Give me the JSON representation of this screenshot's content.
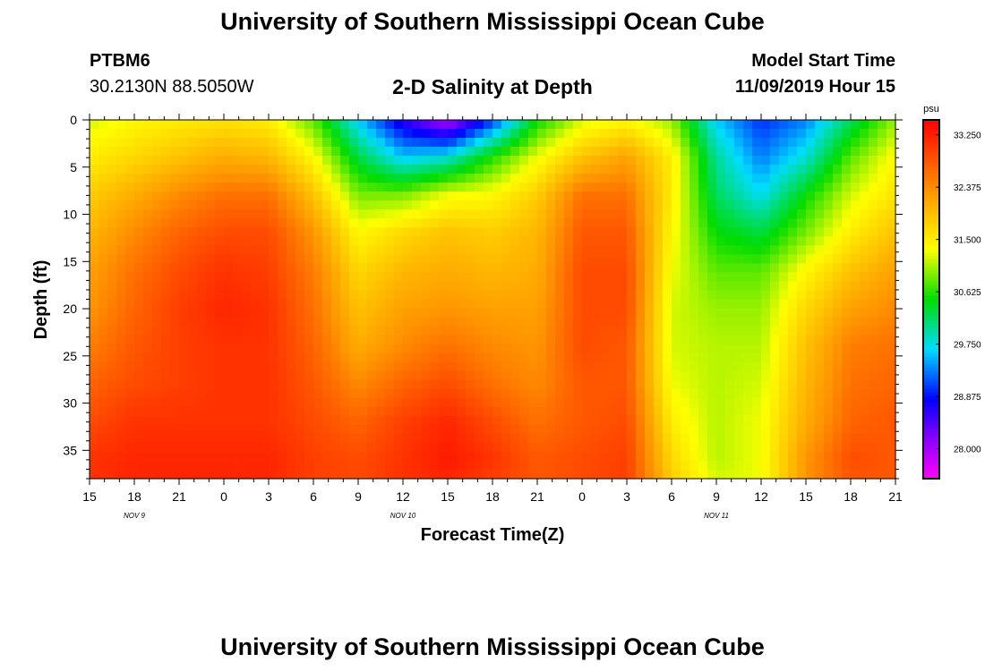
{
  "header": {
    "title": "University of Southern Mississippi Ocean Cube",
    "station": "PTBM6",
    "coordinates": "30.2130N 88.5050W",
    "subtitle": "2-D Salinity at Depth",
    "start_label": "Model Start Time",
    "start_value": "11/09/2019 Hour 15"
  },
  "footer": {
    "title": "University of Southern Mississippi Ocean Cube"
  },
  "chart_data": {
    "type": "heatmap",
    "title": "2-D Salinity at Depth",
    "xlabel": "Forecast Time(Z)",
    "ylabel": "Depth (ft)",
    "x_ticks": [
      "15",
      "18",
      "21",
      "0",
      "3",
      "6",
      "9",
      "12",
      "15",
      "18",
      "21",
      "0",
      "3",
      "6",
      "9",
      "12",
      "15",
      "18",
      "21"
    ],
    "date_labels": [
      {
        "label": "NOV  9",
        "tick_index": 1
      },
      {
        "label": "NOV 10",
        "tick_index": 7
      },
      {
        "label": "NOV 11",
        "tick_index": 14
      }
    ],
    "y_ticks": [
      0,
      5,
      10,
      15,
      20,
      25,
      30,
      35
    ],
    "ylim": [
      0,
      38
    ],
    "x_range_hours": [
      0,
      54
    ],
    "colorbar": {
      "units": "psu",
      "vmin": 27.5,
      "vmax": 33.5,
      "ticks": [
        "33.250",
        "32.375",
        "31.500",
        "30.625",
        "29.750",
        "28.875",
        "28.000"
      ]
    },
    "depth_levels_ft": [
      0,
      4,
      8,
      12,
      16,
      20,
      24,
      28,
      32,
      36,
      38
    ],
    "time_hours": [
      0,
      3,
      6,
      9,
      12,
      15,
      18,
      21,
      24,
      27,
      30,
      33,
      36,
      39,
      42,
      45,
      48,
      51,
      54
    ],
    "salinity_psu": [
      [
        31.2,
        31.4,
        31.5,
        31.6,
        31.5,
        30.8,
        29.6,
        28.6,
        27.9,
        29.0,
        30.5,
        31.2,
        31.4,
        31.0,
        29.6,
        29.0,
        29.3,
        30.2,
        31.0
      ],
      [
        31.5,
        31.7,
        31.9,
        32.1,
        32.0,
        31.4,
        30.3,
        29.6,
        29.8,
        30.6,
        31.3,
        31.9,
        32.2,
        31.5,
        30.0,
        29.3,
        29.8,
        30.8,
        31.4
      ],
      [
        31.8,
        32.1,
        32.4,
        32.6,
        32.6,
        31.9,
        30.9,
        30.9,
        31.3,
        31.4,
        31.8,
        32.6,
        32.6,
        31.5,
        30.2,
        29.7,
        30.5,
        31.2,
        31.6
      ],
      [
        32.0,
        32.4,
        32.7,
        32.9,
        32.9,
        32.3,
        31.4,
        31.7,
        31.9,
        31.8,
        32.0,
        32.8,
        32.8,
        31.4,
        30.5,
        30.3,
        30.9,
        31.5,
        31.9
      ],
      [
        32.2,
        32.6,
        32.9,
        33.1,
        33.0,
        32.5,
        31.7,
        32.0,
        32.1,
        32.0,
        32.1,
        32.9,
        32.9,
        31.3,
        30.8,
        30.8,
        31.4,
        31.9,
        32.2
      ],
      [
        32.3,
        32.7,
        33.0,
        33.2,
        33.1,
        32.6,
        31.9,
        32.2,
        32.3,
        32.2,
        32.2,
        32.9,
        32.9,
        31.2,
        31.0,
        31.0,
        31.7,
        32.2,
        32.4
      ],
      [
        32.5,
        32.8,
        33.0,
        33.1,
        33.1,
        32.7,
        32.1,
        32.4,
        32.6,
        32.4,
        32.3,
        32.9,
        32.8,
        31.2,
        31.1,
        31.1,
        31.9,
        32.5,
        32.6
      ],
      [
        32.7,
        32.9,
        33.0,
        33.1,
        33.1,
        32.8,
        32.4,
        32.7,
        32.9,
        32.6,
        32.4,
        32.8,
        32.8,
        31.3,
        31.1,
        31.2,
        32.0,
        32.6,
        32.7
      ],
      [
        32.9,
        33.1,
        33.1,
        33.1,
        33.1,
        32.9,
        32.7,
        33.0,
        33.2,
        32.9,
        32.6,
        32.8,
        32.9,
        31.5,
        31.1,
        31.3,
        32.1,
        32.7,
        32.8
      ],
      [
        33.1,
        33.2,
        33.2,
        33.2,
        33.2,
        33.0,
        32.9,
        33.1,
        33.3,
        33.1,
        32.8,
        32.9,
        33.0,
        31.7,
        31.1,
        31.3,
        32.3,
        32.9,
        32.8
      ],
      [
        33.1,
        33.2,
        33.2,
        33.2,
        33.2,
        33.0,
        32.9,
        33.1,
        33.2,
        33.0,
        32.8,
        32.9,
        33.0,
        31.8,
        31.2,
        31.3,
        32.3,
        32.8,
        32.8
      ]
    ]
  }
}
